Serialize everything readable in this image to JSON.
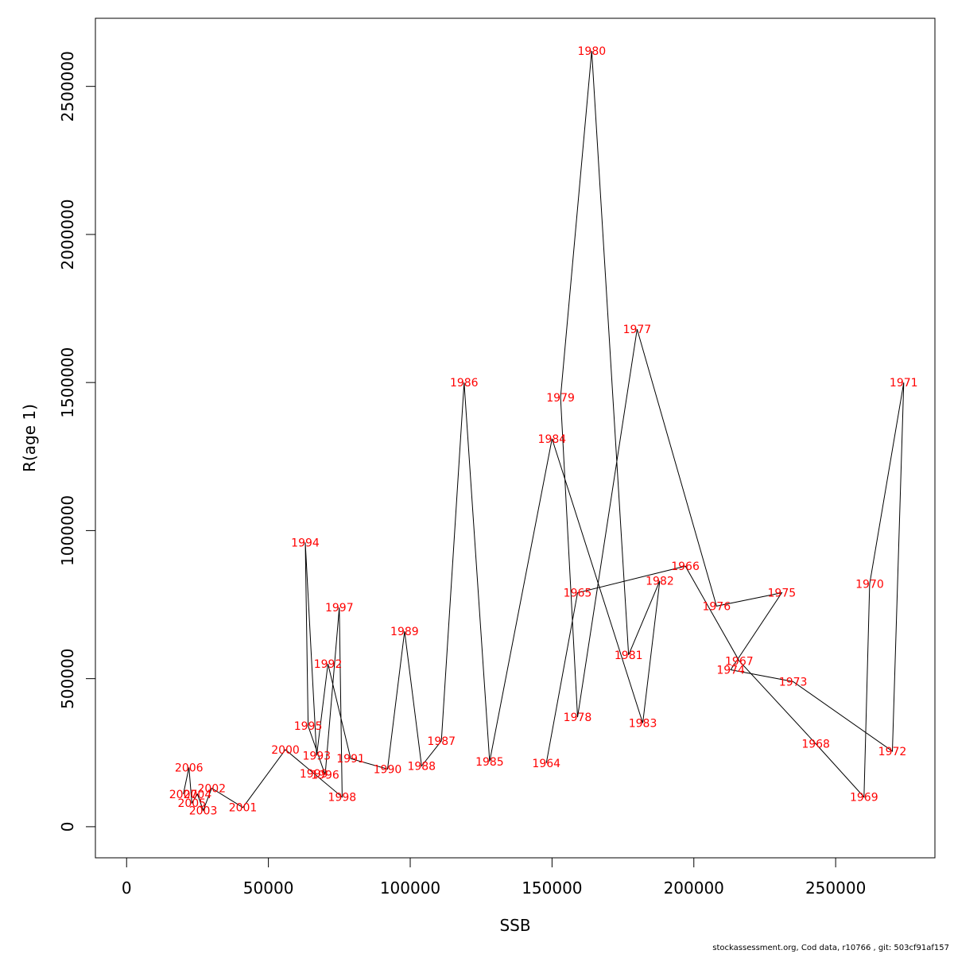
{
  "chart_data": {
    "type": "line",
    "title": "",
    "xlabel": "SSB",
    "ylabel": "R(age 1)",
    "xlim": [
      -11000,
      285000
    ],
    "ylim": [
      -105000,
      2730000
    ],
    "x_ticks": [
      0,
      50000,
      100000,
      150000,
      200000,
      250000
    ],
    "y_ticks": [
      0,
      500000,
      1000000,
      1500000,
      2000000,
      2500000
    ],
    "grid": false,
    "line_color": "#000000",
    "label_color": "#ff0000",
    "points": [
      {
        "year": "1964",
        "ssb": 148000,
        "r": 215000
      },
      {
        "year": "1965",
        "ssb": 159000,
        "r": 790000
      },
      {
        "year": "1966",
        "ssb": 197000,
        "r": 880000
      },
      {
        "year": "1967",
        "ssb": 216000,
        "r": 560000
      },
      {
        "year": "1968",
        "ssb": 243000,
        "r": 280000
      },
      {
        "year": "1969",
        "ssb": 260000,
        "r": 100000
      },
      {
        "year": "1970",
        "ssb": 262000,
        "r": 820000
      },
      {
        "year": "1971",
        "ssb": 274000,
        "r": 1500000
      },
      {
        "year": "1972",
        "ssb": 270000,
        "r": 255000
      },
      {
        "year": "1973",
        "ssb": 235000,
        "r": 490000
      },
      {
        "year": "1974",
        "ssb": 213000,
        "r": 530000
      },
      {
        "year": "1975",
        "ssb": 231000,
        "r": 790000
      },
      {
        "year": "1976",
        "ssb": 208000,
        "r": 745000
      },
      {
        "year": "1977",
        "ssb": 180000,
        "r": 1680000
      },
      {
        "year": "1978",
        "ssb": 159000,
        "r": 370000
      },
      {
        "year": "1979",
        "ssb": 153000,
        "r": 1450000
      },
      {
        "year": "1980",
        "ssb": 164000,
        "r": 2620000
      },
      {
        "year": "1981",
        "ssb": 177000,
        "r": 580000
      },
      {
        "year": "1982",
        "ssb": 188000,
        "r": 830000
      },
      {
        "year": "1983",
        "ssb": 182000,
        "r": 350000
      },
      {
        "year": "1984",
        "ssb": 150000,
        "r": 1310000
      },
      {
        "year": "1985",
        "ssb": 128000,
        "r": 220000
      },
      {
        "year": "1986",
        "ssb": 119000,
        "r": 1500000
      },
      {
        "year": "1987",
        "ssb": 111000,
        "r": 290000
      },
      {
        "year": "1988",
        "ssb": 104000,
        "r": 205000
      },
      {
        "year": "1989",
        "ssb": 98000,
        "r": 660000
      },
      {
        "year": "1990",
        "ssb": 92000,
        "r": 195000
      },
      {
        "year": "1991",
        "ssb": 79000,
        "r": 230000
      },
      {
        "year": "1992",
        "ssb": 71000,
        "r": 550000
      },
      {
        "year": "1993",
        "ssb": 67000,
        "r": 240000
      },
      {
        "year": "1994",
        "ssb": 63000,
        "r": 960000
      },
      {
        "year": "1995",
        "ssb": 64000,
        "r": 340000
      },
      {
        "year": "1996",
        "ssb": 70000,
        "r": 175000
      },
      {
        "year": "1997",
        "ssb": 75000,
        "r": 740000
      },
      {
        "year": "1998",
        "ssb": 76000,
        "r": 100000
      },
      {
        "year": "1999",
        "ssb": 66000,
        "r": 180000
      },
      {
        "year": "2000",
        "ssb": 56000,
        "r": 260000
      },
      {
        "year": "2001",
        "ssb": 41000,
        "r": 65000
      },
      {
        "year": "2002",
        "ssb": 30000,
        "r": 130000
      },
      {
        "year": "2003",
        "ssb": 27000,
        "r": 55000
      },
      {
        "year": "2004",
        "ssb": 25000,
        "r": 110000
      },
      {
        "year": "2005",
        "ssb": 23000,
        "r": 80000
      },
      {
        "year": "2006",
        "ssb": 22000,
        "r": 200000
      },
      {
        "year": "2007",
        "ssb": 20000,
        "r": 110000
      }
    ]
  },
  "footer": {
    "text": "stockassessment.org, Cod  data, r10766 , git: 503cf91af157"
  }
}
